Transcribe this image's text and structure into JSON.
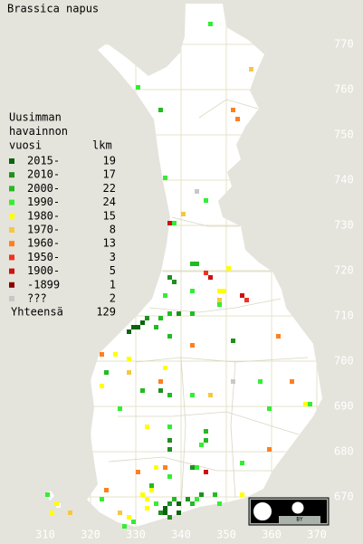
{
  "title": "Brassica napus",
  "legend": {
    "title": [
      "Uusimman",
      "havainnon",
      "vuosi"
    ],
    "count_header": "lkm",
    "rows": [
      {
        "label": "2015-",
        "count": 19,
        "color": "#0b640b"
      },
      {
        "label": "2010-",
        "count": 17,
        "color": "#1f8f1f"
      },
      {
        "label": "2000-",
        "count": 22,
        "color": "#22bb22"
      },
      {
        "label": "1990-",
        "count": 24,
        "color": "#33ee33"
      },
      {
        "label": "1980-",
        "count": 15,
        "color": "#ffff00"
      },
      {
        "label": "1970-",
        "count": 8,
        "color": "#f5c842"
      },
      {
        "label": "1960-",
        "count": 13,
        "color": "#ff7f1e"
      },
      {
        "label": "1950-",
        "count": 3,
        "color": "#ee3322"
      },
      {
        "label": "1900-",
        "count": 5,
        "color": "#cc1111"
      },
      {
        "label": "-1899",
        "count": 1,
        "color": "#8b0000"
      },
      {
        "label": "???",
        "count": 2,
        "color": "#c8c8c8"
      }
    ],
    "total": {
      "label": "Yhteensä",
      "value": 129
    }
  },
  "xticks": [
    310,
    320,
    330,
    340,
    350,
    360,
    370
  ],
  "yticks": [
    670,
    680,
    690,
    700,
    710,
    720,
    730,
    740,
    750,
    760,
    770
  ],
  "observations": [
    [
      346,
      774,
      3
    ],
    [
      355,
      764,
      5
    ],
    [
      330,
      760,
      3
    ],
    [
      335,
      755,
      2
    ],
    [
      351,
      755,
      6
    ],
    [
      352,
      753,
      6
    ],
    [
      336,
      740,
      3
    ],
    [
      343,
      737,
      10
    ],
    [
      345,
      735,
      3
    ],
    [
      340,
      732,
      5
    ],
    [
      337,
      730,
      8
    ],
    [
      338,
      730,
      3
    ],
    [
      342,
      721,
      2
    ],
    [
      343,
      721,
      2
    ],
    [
      337,
      718,
      1
    ],
    [
      338,
      717,
      1
    ],
    [
      345,
      719,
      7
    ],
    [
      346,
      718,
      8
    ],
    [
      350,
      720,
      4
    ],
    [
      342,
      715,
      3
    ],
    [
      348,
      715,
      4
    ],
    [
      349,
      715,
      4
    ],
    [
      348,
      713,
      5
    ],
    [
      353,
      714,
      8
    ],
    [
      354,
      713,
      7
    ],
    [
      336,
      714,
      3
    ],
    [
      339,
      710,
      1
    ],
    [
      337,
      710,
      2
    ],
    [
      335,
      709,
      2
    ],
    [
      331,
      708,
      0
    ],
    [
      330,
      707,
      0
    ],
    [
      329,
      707,
      0
    ],
    [
      328,
      706,
      0
    ],
    [
      332,
      709,
      1
    ],
    [
      334,
      707,
      2
    ],
    [
      342,
      710,
      2
    ],
    [
      348,
      712,
      3
    ],
    [
      351,
      704,
      1
    ],
    [
      337,
      705,
      2
    ],
    [
      361,
      705,
      6
    ],
    [
      342,
      703,
      6
    ],
    [
      322,
      701,
      6
    ],
    [
      325,
      701,
      4
    ],
    [
      328,
      700,
      4
    ],
    [
      323,
      697,
      2
    ],
    [
      328,
      697,
      5
    ],
    [
      336,
      698,
      4
    ],
    [
      351,
      695,
      10
    ],
    [
      357,
      695,
      3
    ],
    [
      364,
      695,
      6
    ],
    [
      322,
      694,
      4
    ],
    [
      331,
      693,
      2
    ],
    [
      335,
      695,
      6
    ],
    [
      335,
      693,
      1
    ],
    [
      337,
      692,
      2
    ],
    [
      326,
      689,
      3
    ],
    [
      342,
      692,
      3
    ],
    [
      346,
      692,
      5
    ],
    [
      359,
      689,
      3
    ],
    [
      367,
      690,
      4
    ],
    [
      368,
      690,
      3
    ],
    [
      337,
      685,
      3
    ],
    [
      332,
      685,
      4
    ],
    [
      345,
      684,
      2
    ],
    [
      345,
      682,
      2
    ],
    [
      344,
      681,
      3
    ],
    [
      337,
      682,
      1
    ],
    [
      337,
      680,
      1
    ],
    [
      359,
      680,
      6
    ],
    [
      330,
      675,
      6
    ],
    [
      334,
      676,
      4
    ],
    [
      336,
      676,
      6
    ],
    [
      342,
      676,
      1
    ],
    [
      343,
      676,
      3
    ],
    [
      345,
      675,
      8
    ],
    [
      353,
      677,
      3
    ],
    [
      337,
      674,
      3
    ],
    [
      333,
      672,
      2
    ],
    [
      333,
      671,
      4
    ],
    [
      323,
      671,
      6
    ],
    [
      322,
      669,
      3
    ],
    [
      310,
      670,
      3
    ],
    [
      312,
      668,
      4
    ],
    [
      311,
      666,
      4
    ],
    [
      315,
      666,
      5
    ],
    [
      331,
      670,
      4
    ],
    [
      332,
      669,
      4
    ],
    [
      332,
      667,
      4
    ],
    [
      334,
      668,
      3
    ],
    [
      335,
      666,
      1
    ],
    [
      336,
      667,
      0
    ],
    [
      337,
      668,
      1
    ],
    [
      338,
      669,
      2
    ],
    [
      339,
      668,
      0
    ],
    [
      341,
      669,
      1
    ],
    [
      342,
      668,
      2
    ],
    [
      343,
      669,
      3
    ],
    [
      344,
      670,
      1
    ],
    [
      347,
      670,
      2
    ],
    [
      348,
      668,
      3
    ],
    [
      353,
      670,
      4
    ],
    [
      328,
      665,
      4
    ],
    [
      327,
      663,
      3
    ],
    [
      329,
      664,
      3
    ],
    [
      326,
      666,
      5
    ],
    [
      339,
      666,
      0
    ],
    [
      337,
      665,
      1
    ],
    [
      336,
      666,
      0
    ]
  ],
  "badge": "BY"
}
